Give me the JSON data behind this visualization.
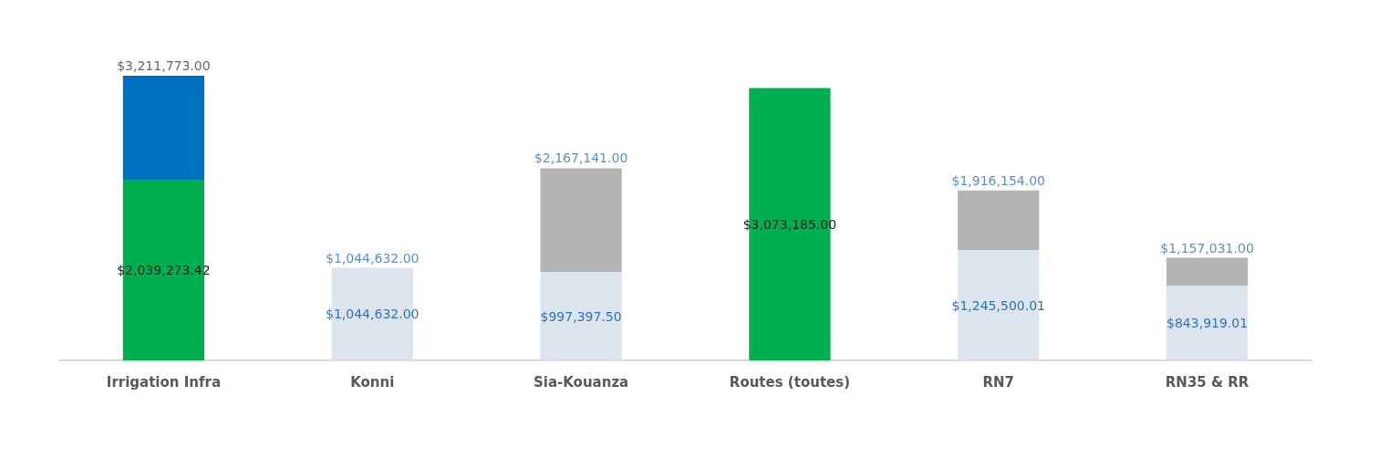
{
  "chart_data": {
    "type": "bar",
    "stacked": true,
    "categories": [
      "Irrigation Infra",
      "Konni",
      "Sia-Kouanza",
      "Routes (toutes)",
      "RN7",
      "RN35 & RR"
    ],
    "series": [
      {
        "colors": [
          "#00b050",
          "#dce4ee",
          "#dce4ee",
          "#00b050",
          "#dce4ee",
          "#dce4ee"
        ],
        "values": [
          2039273.42,
          1044632,
          997397.5,
          3073185,
          1245500.01,
          843919.01
        ],
        "value_labels": [
          "$2,039,273.42",
          "$1,044,632.00",
          "$997,397.50",
          "$3,073,185.00",
          "$1,245,500.01",
          "$843,919.01"
        ]
      },
      {
        "colors": [
          "#0070c0",
          null,
          "#b4b4b4",
          null,
          "#b4b4b4",
          "#b4b4b4"
        ],
        "values": [
          1172499.58,
          null,
          1169743.5,
          null,
          670653.99,
          313111.99
        ]
      }
    ],
    "totals": [
      "$3,211,773.00",
      "$1,044,632.00",
      "$2,167,141.00",
      null,
      "$1,916,154.00",
      "$1,157,031.00"
    ]
  }
}
